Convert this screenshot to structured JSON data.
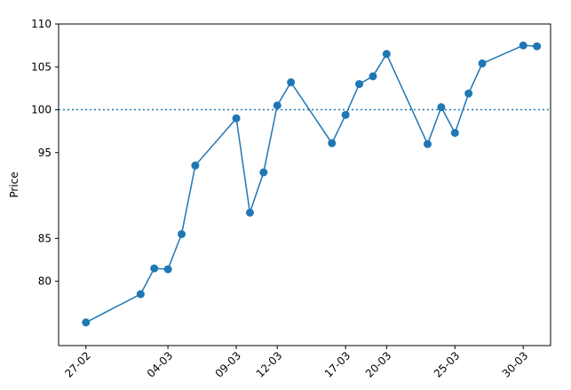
{
  "chart_data": {
    "type": "line",
    "title": "",
    "xlabel": "",
    "ylabel": "Price",
    "x": [
      "27-02",
      "02-03",
      "03-03",
      "04-03",
      "05-03",
      "06-03",
      "09-03",
      "10-03",
      "11-03",
      "12-03",
      "13-03",
      "16-03",
      "17-03",
      "18-03",
      "19-03",
      "20-03",
      "23-03",
      "24-03",
      "25-03",
      "26-03",
      "27-03",
      "30-03",
      "31-03"
    ],
    "values": [
      75.2,
      78.5,
      81.5,
      81.4,
      85.5,
      93.5,
      99.0,
      88.0,
      92.7,
      100.5,
      103.2,
      96.1,
      99.4,
      103.0,
      103.9,
      106.5,
      96.0,
      100.3,
      97.3,
      101.9,
      105.4,
      107.5,
      107.4
    ],
    "xticks": [
      "27-02",
      "04-03",
      "09-03",
      "12-03",
      "17-03",
      "20-03",
      "25-03",
      "30-03"
    ],
    "yticks": [
      "80",
      "85",
      "95",
      "100",
      "105",
      "110"
    ],
    "ylim": [
      72.5,
      110
    ],
    "xlim": [
      "25-02",
      "01-04"
    ],
    "reference_line": {
      "y": 100,
      "style": "dotted"
    },
    "grid": false,
    "color": "#1f77b4"
  }
}
